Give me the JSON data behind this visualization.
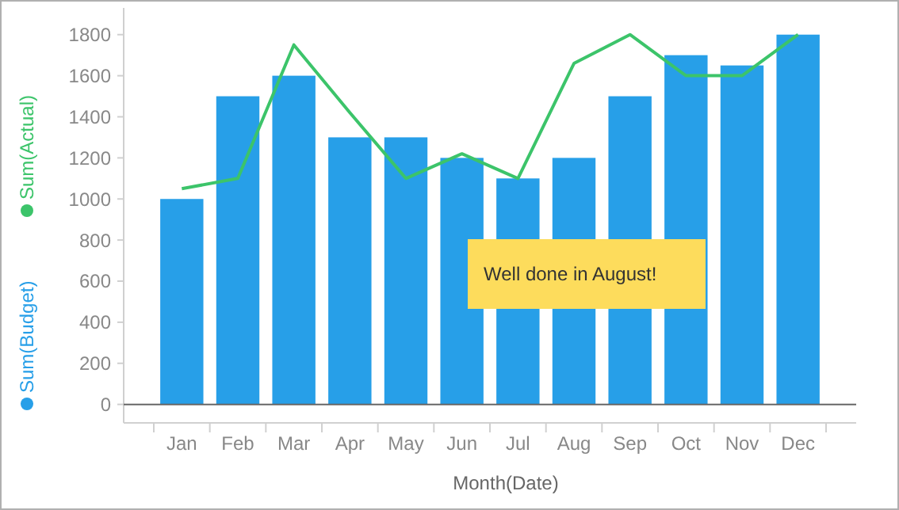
{
  "chart_data": {
    "type": "bar",
    "xlabel": "Month(Date)",
    "categories": [
      "Jan",
      "Feb",
      "Mar",
      "Apr",
      "May",
      "Jun",
      "Jul",
      "Aug",
      "Sep",
      "Oct",
      "Nov",
      "Dec"
    ],
    "series": [
      {
        "name": "Sum(Budget)",
        "color": "#279fe8",
        "values": [
          1000,
          1500,
          1600,
          1300,
          1300,
          1200,
          1100,
          1200,
          1500,
          1700,
          1650,
          1800
        ]
      },
      {
        "name": "Sum(Actual)",
        "type": "line",
        "color": "#3cc46a",
        "values": [
          1050,
          1100,
          1750,
          1420,
          1100,
          1220,
          1100,
          1660,
          1800,
          1600,
          1600,
          1800
        ]
      }
    ],
    "ylim": [
      -90,
      1930
    ],
    "yticks": [
      0,
      200,
      400,
      600,
      800,
      1000,
      1200,
      1400,
      1600,
      1800
    ],
    "ref_lines": [
      {
        "axis": "y",
        "value": 0,
        "color": "#666666"
      }
    ],
    "annotations": [
      "Well done in August!"
    ],
    "legend": "left",
    "grid": false,
    "marker": "none",
    "line_style": "solid"
  }
}
